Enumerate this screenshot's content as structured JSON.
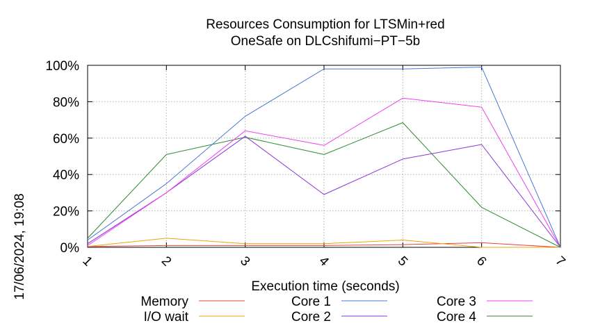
{
  "chart_data": {
    "type": "line",
    "title": [
      "Resources Consumption for LTSMin+red",
      "OneSafe on DLCshifumi−PT−5b"
    ],
    "xlabel": "Execution time (seconds)",
    "ylabel": "",
    "side_label": "17/06/2024, 19:08",
    "xlim": [
      1,
      7
    ],
    "ylim": [
      0,
      100
    ],
    "x_ticks": [
      "1",
      "2",
      "3",
      "4",
      "5",
      "6",
      "7"
    ],
    "y_ticks": [
      "0%",
      "20%",
      "40%",
      "60%",
      "80%",
      "100%"
    ],
    "grid": true,
    "legend_position": "bottom",
    "x": [
      1,
      2,
      3,
      4,
      5,
      6,
      7
    ],
    "series": [
      {
        "name": "Memory",
        "color": "#e8403a",
        "values": [
          0.5,
          1,
          1,
          1,
          1.5,
          2.5,
          0
        ]
      },
      {
        "name": "I/O wait",
        "color": "#f0a30a",
        "values": [
          0.5,
          5,
          2,
          2,
          4,
          0,
          0
        ]
      },
      {
        "name": "Core 1",
        "color": "#4a78d4",
        "values": [
          4,
          35,
          72,
          98,
          98,
          99,
          0
        ]
      },
      {
        "name": "Core 2",
        "color": "#8a35d6",
        "values": [
          2,
          30,
          61,
          29,
          48.5,
          56.5,
          0
        ]
      },
      {
        "name": "Core 3",
        "color": "#f040f0",
        "values": [
          1,
          30,
          64,
          56,
          82,
          77,
          0
        ]
      },
      {
        "name": "Core 4",
        "color": "#2e8a2e",
        "values": [
          5,
          51,
          60.5,
          51,
          68.5,
          22,
          0
        ]
      }
    ]
  }
}
